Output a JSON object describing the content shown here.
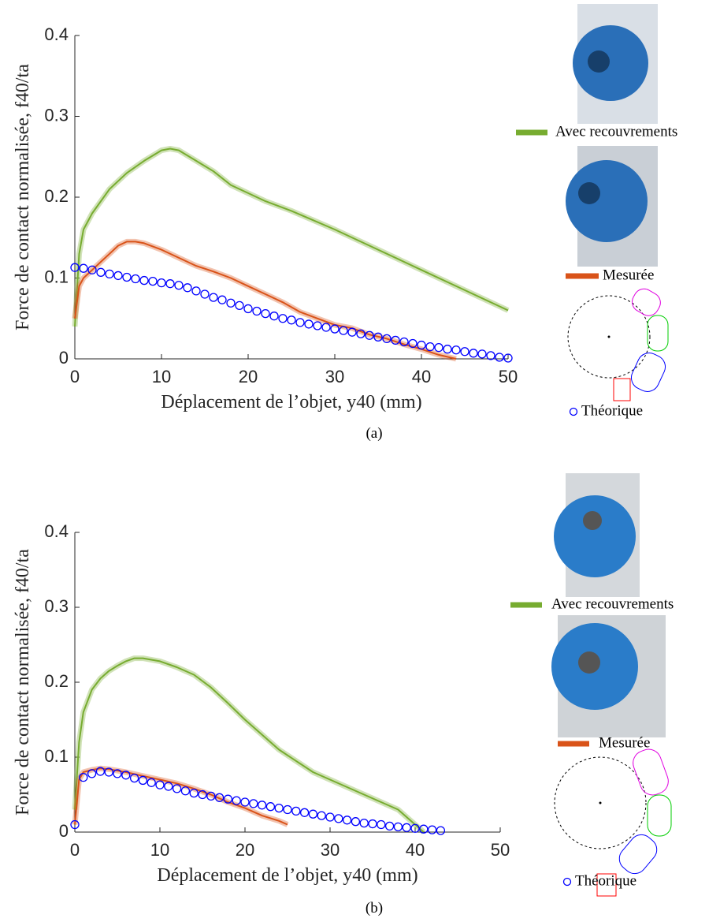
{
  "chart_data": [
    {
      "type": "line",
      "xlabel": "Déplacement de l’objet, y40 (mm)",
      "ylabel": "Force de contact normalisée, f40/ta",
      "caption": "(a)",
      "xlim": [
        0,
        50
      ],
      "ylim": [
        0,
        0.4
      ],
      "xticks": [
        0,
        10,
        20,
        30,
        40,
        50
      ],
      "yticks": [
        0,
        0.1,
        0.2,
        0.3,
        0.4
      ],
      "series": [
        {
          "name": "Avec recouvrements",
          "color": "#77ac30",
          "style": "line",
          "x": [
            0,
            0.5,
            1,
            2,
            4,
            6,
            8,
            10,
            11,
            12,
            14,
            16,
            18,
            20,
            22,
            25,
            30,
            35,
            40,
            45,
            50
          ],
          "values": [
            0.04,
            0.13,
            0.16,
            0.18,
            0.21,
            0.23,
            0.245,
            0.258,
            0.26,
            0.258,
            0.245,
            0.232,
            0.215,
            0.205,
            0.195,
            0.183,
            0.16,
            0.135,
            0.11,
            0.085,
            0.06
          ]
        },
        {
          "name": "Mesurée",
          "color": "#d95319",
          "style": "line",
          "x": [
            0,
            0.5,
            1,
            2,
            3,
            4,
            5,
            6,
            7,
            8,
            10,
            12,
            14,
            16,
            18,
            20,
            22,
            24,
            26,
            28,
            30,
            32,
            34,
            36,
            38,
            40,
            42,
            44
          ],
          "values": [
            0.05,
            0.09,
            0.1,
            0.11,
            0.12,
            0.13,
            0.14,
            0.145,
            0.145,
            0.143,
            0.135,
            0.125,
            0.115,
            0.108,
            0.1,
            0.09,
            0.08,
            0.07,
            0.058,
            0.05,
            0.042,
            0.038,
            0.03,
            0.025,
            0.018,
            0.012,
            0.005,
            0
          ]
        },
        {
          "name": "Théorique",
          "color": "#0000ff",
          "style": "markers",
          "x": [
            0,
            1,
            2,
            3,
            4,
            5,
            6,
            7,
            8,
            9,
            10,
            11,
            12,
            13,
            14,
            15,
            16,
            17,
            18,
            19,
            20,
            21,
            22,
            23,
            24,
            25,
            26,
            27,
            28,
            29,
            30,
            31,
            32,
            33,
            34,
            35,
            36,
            37,
            38,
            39,
            40,
            41,
            42,
            43,
            44,
            45,
            46,
            47,
            48,
            49,
            50
          ],
          "values": [
            0.113,
            0.112,
            0.11,
            0.107,
            0.105,
            0.103,
            0.101,
            0.099,
            0.097,
            0.096,
            0.094,
            0.093,
            0.091,
            0.088,
            0.084,
            0.08,
            0.076,
            0.073,
            0.069,
            0.066,
            0.062,
            0.059,
            0.056,
            0.053,
            0.05,
            0.048,
            0.045,
            0.043,
            0.041,
            0.039,
            0.037,
            0.035,
            0.033,
            0.031,
            0.029,
            0.027,
            0.025,
            0.023,
            0.021,
            0.019,
            0.017,
            0.015,
            0.014,
            0.012,
            0.011,
            0.009,
            0.007,
            0.006,
            0.004,
            0.002,
            0.001
          ]
        }
      ]
    },
    {
      "type": "line",
      "xlabel": "Déplacement de l’objet, y40 (mm)",
      "ylabel": "Force de contact normalisée, f40/ta",
      "caption": "(b)",
      "xlim": [
        0,
        50
      ],
      "ylim": [
        0,
        0.4
      ],
      "xticks": [
        0,
        10,
        20,
        30,
        40,
        50
      ],
      "yticks": [
        0,
        0.1,
        0.2,
        0.3,
        0.4
      ],
      "series": [
        {
          "name": "Avec recouvrements",
          "color": "#77ac30",
          "style": "line",
          "x": [
            0,
            0.5,
            1,
            2,
            3,
            4,
            5,
            6,
            7,
            8,
            10,
            12,
            14,
            16,
            18,
            20,
            22,
            24,
            26,
            28,
            30,
            32,
            34,
            36,
            38,
            39,
            40,
            41
          ],
          "values": [
            0.03,
            0.12,
            0.16,
            0.19,
            0.205,
            0.215,
            0.222,
            0.228,
            0.232,
            0.232,
            0.228,
            0.22,
            0.21,
            0.193,
            0.172,
            0.15,
            0.13,
            0.11,
            0.095,
            0.08,
            0.07,
            0.06,
            0.05,
            0.04,
            0.03,
            0.02,
            0.01,
            0
          ]
        },
        {
          "name": "Mesurée",
          "color": "#d95319",
          "style": "line",
          "x": [
            0,
            0.5,
            1,
            2,
            3,
            4,
            6,
            8,
            10,
            12,
            14,
            16,
            18,
            20,
            22,
            24,
            25
          ],
          "values": [
            0.01,
            0.07,
            0.08,
            0.083,
            0.085,
            0.084,
            0.08,
            0.075,
            0.07,
            0.065,
            0.058,
            0.05,
            0.04,
            0.032,
            0.022,
            0.015,
            0.01
          ]
        },
        {
          "name": "Théorique",
          "color": "#0000ff",
          "style": "markers",
          "x": [
            0,
            1,
            2,
            3,
            4,
            5,
            6,
            7,
            8,
            9,
            10,
            11,
            12,
            13,
            14,
            15,
            16,
            17,
            18,
            19,
            20,
            21,
            22,
            23,
            24,
            25,
            26,
            27,
            28,
            29,
            30,
            31,
            32,
            33,
            34,
            35,
            36,
            37,
            38,
            39,
            40,
            41,
            42,
            43
          ],
          "values": [
            0.01,
            0.073,
            0.078,
            0.081,
            0.08,
            0.078,
            0.076,
            0.072,
            0.069,
            0.066,
            0.063,
            0.061,
            0.058,
            0.055,
            0.052,
            0.05,
            0.048,
            0.046,
            0.044,
            0.042,
            0.04,
            0.038,
            0.036,
            0.034,
            0.032,
            0.03,
            0.028,
            0.026,
            0.024,
            0.022,
            0.02,
            0.018,
            0.016,
            0.014,
            0.012,
            0.011,
            0.01,
            0.008,
            0.007,
            0.006,
            0.005,
            0.004,
            0.003,
            0.002
          ]
        }
      ]
    }
  ]
}
